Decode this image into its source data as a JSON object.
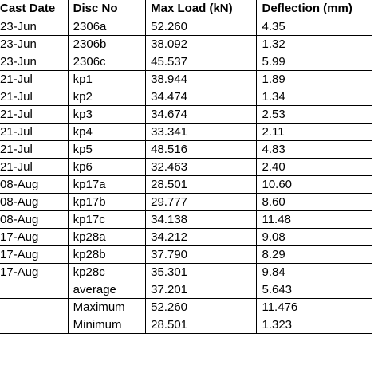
{
  "table": {
    "headers": [
      "Cast Date",
      "Disc No",
      "Max Load (kN)",
      "Deflection (mm)"
    ],
    "rows": [
      [
        "23-Jun",
        "2306a",
        "52.260",
        "4.35"
      ],
      [
        "23-Jun",
        "2306b",
        "38.092",
        "1.32"
      ],
      [
        "23-Jun",
        "2306c",
        "45.537",
        "5.99"
      ],
      [
        "21-Jul",
        "kp1",
        "38.944",
        "1.89"
      ],
      [
        "21-Jul",
        "kp2",
        "34.474",
        "1.34"
      ],
      [
        "21-Jul",
        "kp3",
        "34.674",
        "2.53"
      ],
      [
        "21-Jul",
        "kp4",
        "33.341",
        "2.11"
      ],
      [
        "21-Jul",
        "kp5",
        "48.516",
        "4.83"
      ],
      [
        "21-Jul",
        "kp6",
        "32.463",
        "2.40"
      ],
      [
        "08-Aug",
        "kp17a",
        "28.501",
        "10.60"
      ],
      [
        "08-Aug",
        "kp17b",
        "29.777",
        "8.60"
      ],
      [
        "08-Aug",
        "kp17c",
        "34.138",
        "11.48"
      ],
      [
        "17-Aug",
        "kp28a",
        "34.212",
        "9.08"
      ],
      [
        "17-Aug",
        "kp28b",
        "37.790",
        "8.29"
      ],
      [
        "17-Aug",
        "kp28c",
        "35.301",
        "9.84"
      ]
    ],
    "summary": [
      {
        "label": "average",
        "load": "37.201",
        "deflection": "5.643"
      },
      {
        "label": "Maximum",
        "load": "52.260",
        "deflection": "11.476"
      },
      {
        "label": "Minimum",
        "load": "28.501",
        "deflection": "1.323"
      }
    ]
  }
}
